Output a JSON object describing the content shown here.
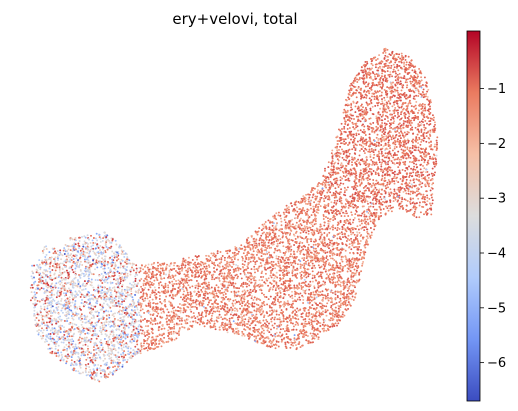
{
  "chart_data": {
    "type": "scatter",
    "title": "ery+velovi, total",
    "xlabel": "",
    "ylabel": "",
    "frame": "none",
    "grid": false,
    "point_count": 9000,
    "colorbar": {
      "colormap": "coolwarm",
      "range": [
        -6.7,
        0.05
      ],
      "ticks": [
        -1,
        -2,
        -3,
        -4,
        -5,
        -6
      ],
      "tick_labels": [
        "−1",
        "−2",
        "−3",
        "−4",
        "−5",
        "−6"
      ],
      "colors": [
        "#3b4cc0",
        "#7396f5",
        "#b0cbfc",
        "#dcdddd",
        "#f6bfa6",
        "#ea7b60",
        "#b40426"
      ]
    },
    "series": [
      {
        "region": "right arm (top-right)",
        "typical_value": -0.6,
        "spread": 0.6
      },
      {
        "region": "central band",
        "typical_value": -0.7,
        "spread": 0.7
      },
      {
        "region": "left lobe",
        "typical_value": -2.6,
        "spread": 1.4
      }
    ]
  }
}
